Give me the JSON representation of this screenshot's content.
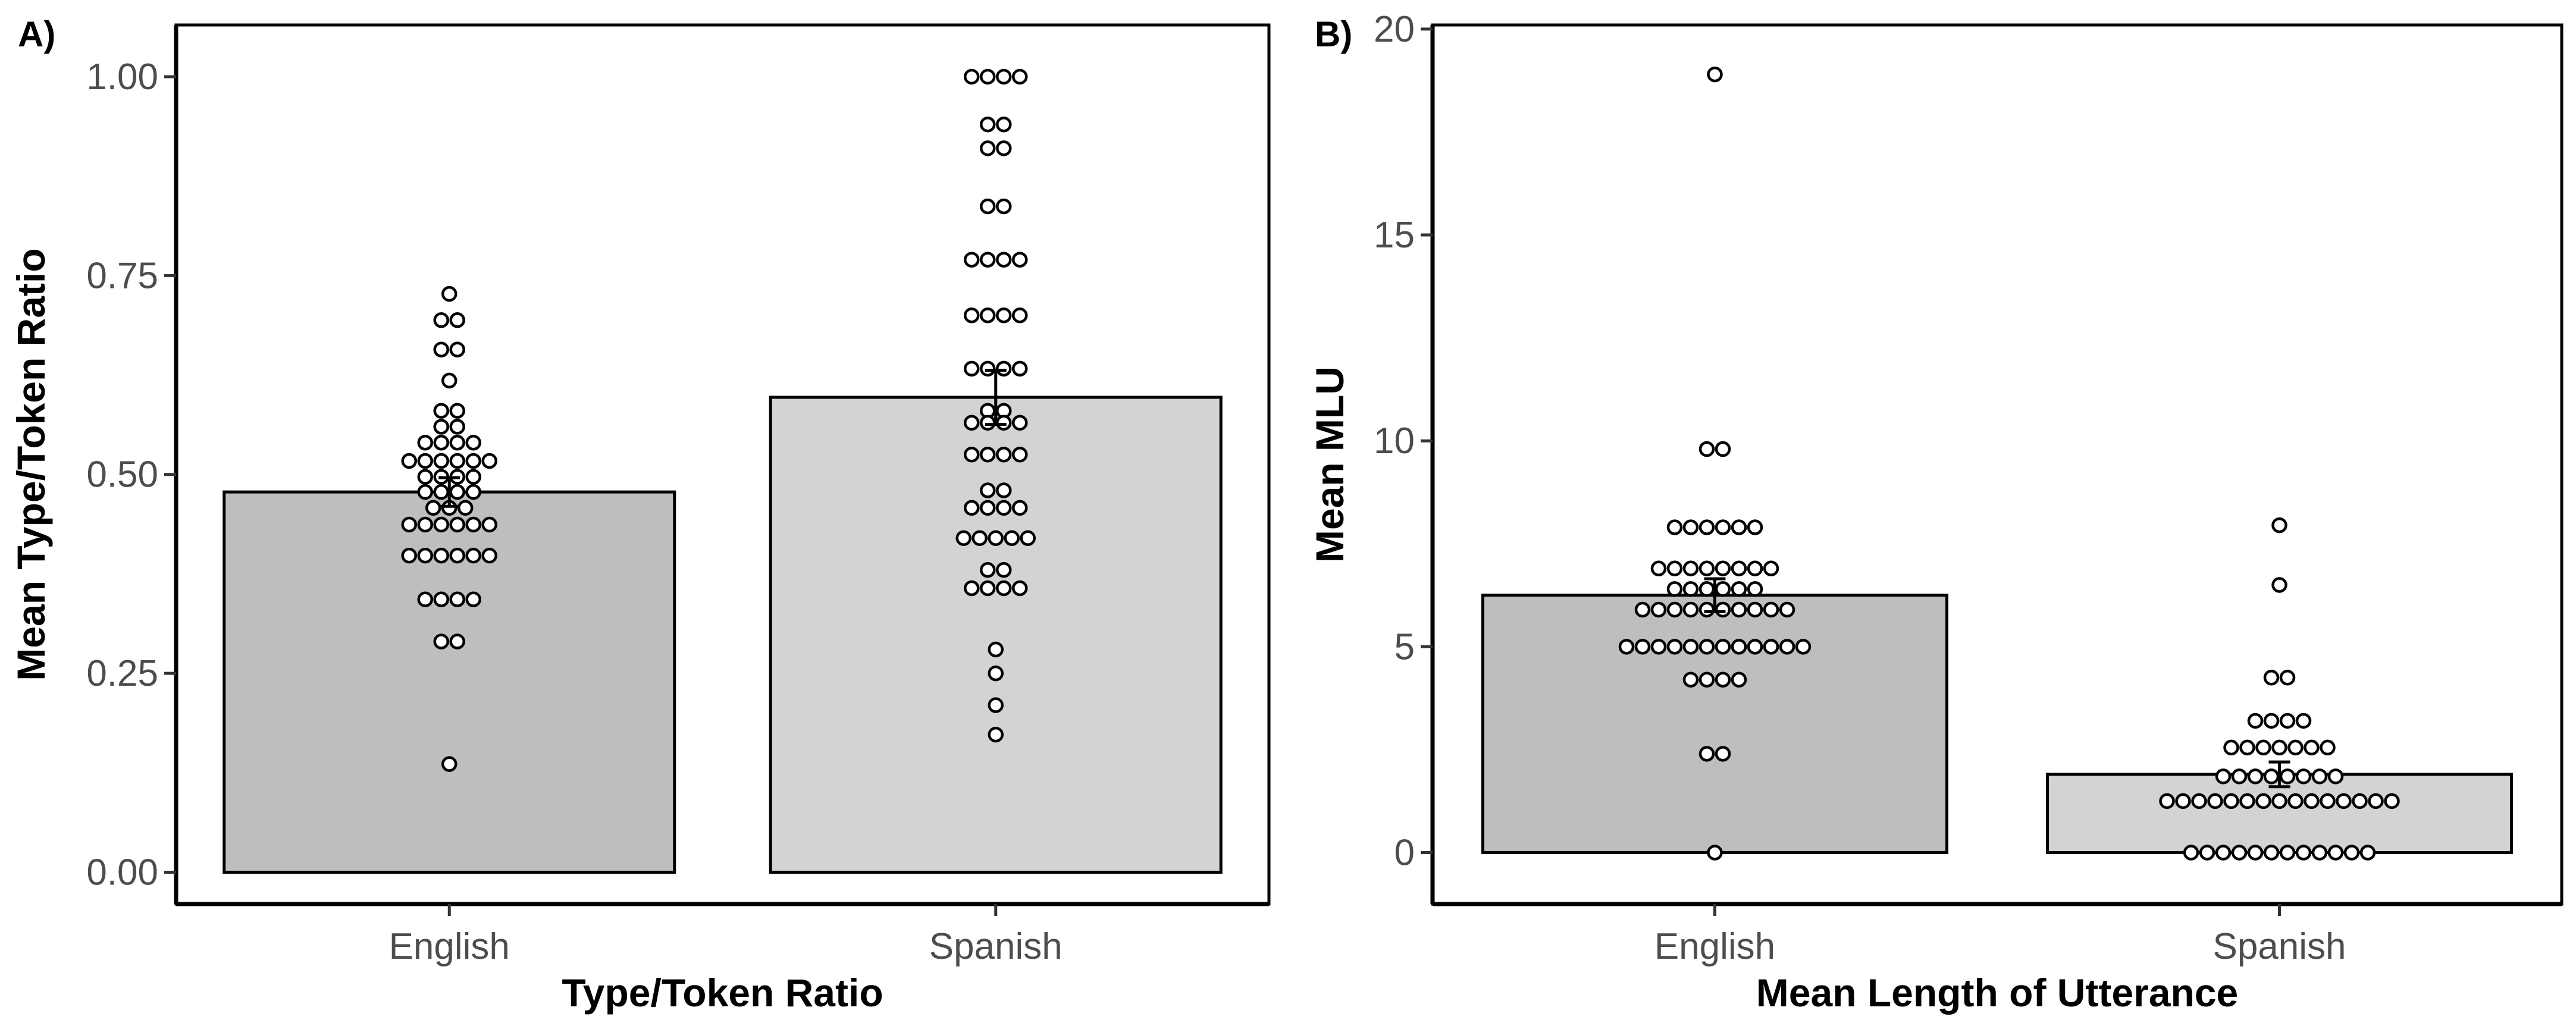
{
  "colors": {
    "english_fill": "#bebebe",
    "spanish_fill": "#d3d3d3",
    "bar_stroke": "#000000",
    "point_fill": "#ffffff",
    "point_stroke": "#000000",
    "tick_label": "#4d4d4d"
  },
  "chart_data": [
    {
      "id": "A",
      "type": "bar",
      "panel_label": "A)",
      "title": "",
      "xlabel": "Type/Token Ratio",
      "ylabel": "Mean Type/Token Ratio",
      "ylim": [
        -0.04,
        1.065
      ],
      "yticks": [
        0.0,
        0.25,
        0.5,
        0.75,
        1.0
      ],
      "ytick_labels": [
        "0.00",
        "0.25",
        "0.50",
        "0.75",
        "1.00"
      ],
      "categories": [
        "English",
        "Spanish"
      ],
      "values": [
        0.478,
        0.597
      ],
      "error": [
        0.018,
        0.034
      ],
      "points": [
        [
          0.727,
          0.694,
          0.694,
          0.657,
          0.657,
          0.618,
          0.58,
          0.58,
          0.56,
          0.56,
          0.54,
          0.54,
          0.54,
          0.54,
          0.517,
          0.517,
          0.517,
          0.517,
          0.517,
          0.517,
          0.497,
          0.497,
          0.497,
          0.497,
          0.478,
          0.478,
          0.478,
          0.478,
          0.458,
          0.458,
          0.458,
          0.437,
          0.437,
          0.437,
          0.437,
          0.437,
          0.437,
          0.398,
          0.398,
          0.398,
          0.398,
          0.398,
          0.398,
          0.343,
          0.343,
          0.343,
          0.343,
          0.29,
          0.29,
          0.136
        ],
        [
          1.0,
          1.0,
          1.0,
          1.0,
          0.94,
          0.94,
          0.91,
          0.91,
          0.837,
          0.837,
          0.77,
          0.77,
          0.77,
          0.77,
          0.7,
          0.7,
          0.7,
          0.7,
          0.633,
          0.633,
          0.633,
          0.633,
          0.58,
          0.58,
          0.565,
          0.565,
          0.565,
          0.565,
          0.525,
          0.525,
          0.525,
          0.525,
          0.48,
          0.48,
          0.458,
          0.458,
          0.458,
          0.458,
          0.42,
          0.42,
          0.42,
          0.42,
          0.42,
          0.38,
          0.38,
          0.357,
          0.357,
          0.357,
          0.357,
          0.28,
          0.25,
          0.21,
          0.173
        ]
      ]
    },
    {
      "id": "B",
      "type": "bar",
      "panel_label": "B)",
      "title": "",
      "xlabel": "Mean Length of Utterance",
      "ylabel": "Mean MLU",
      "ylim": [
        -1.25,
        20.1
      ],
      "yticks": [
        0,
        5,
        10,
        15,
        20
      ],
      "ytick_labels": [
        "0",
        "5",
        "10",
        "15",
        "20"
      ],
      "categories": [
        "English",
        "Spanish"
      ],
      "values": [
        6.25,
        1.9
      ],
      "error": [
        0.4,
        0.3
      ],
      "points": [
        [
          18.9,
          9.8,
          9.8,
          7.9,
          7.9,
          7.9,
          7.9,
          7.9,
          7.9,
          6.9,
          6.9,
          6.9,
          6.9,
          6.9,
          6.9,
          6.9,
          6.9,
          6.4,
          6.4,
          6.4,
          6.4,
          6.4,
          6.4,
          5.9,
          5.9,
          5.9,
          5.9,
          5.9,
          5.9,
          5.9,
          5.9,
          5.9,
          5.9,
          5.0,
          5.0,
          5.0,
          5.0,
          5.0,
          5.0,
          5.0,
          5.0,
          5.0,
          5.0,
          5.0,
          5.0,
          4.2,
          4.2,
          4.2,
          4.2,
          2.4,
          2.4,
          0.0
        ],
        [
          7.95,
          6.5,
          4.25,
          4.25,
          3.2,
          3.2,
          3.2,
          3.2,
          2.55,
          2.55,
          2.55,
          2.55,
          2.55,
          2.55,
          2.55,
          1.85,
          1.85,
          1.85,
          1.85,
          1.85,
          1.85,
          1.85,
          1.85,
          1.25,
          1.25,
          1.25,
          1.25,
          1.25,
          1.25,
          1.25,
          1.25,
          1.25,
          1.25,
          1.25,
          1.25,
          1.25,
          1.25,
          1.25,
          0.0,
          0.0,
          0.0,
          0.0,
          0.0,
          0.0,
          0.0,
          0.0,
          0.0,
          0.0,
          0.0,
          0.0
        ]
      ]
    }
  ]
}
